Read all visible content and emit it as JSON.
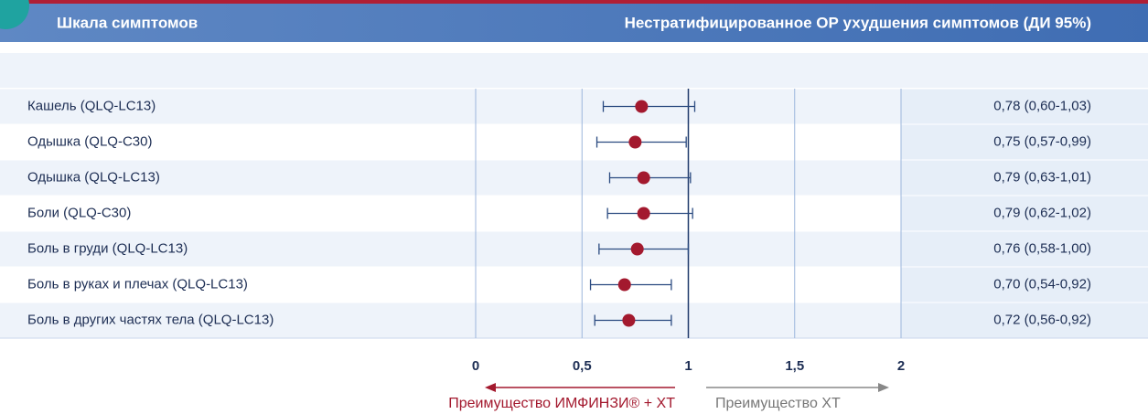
{
  "chart_data": {
    "type": "forest",
    "label_header": "Шкала симптомов",
    "title": "Нестратифицированное ОР ухудшения симптомов (ДИ 95%)",
    "categories": [
      "Кашель (QLQ-LC13)",
      "Одышка (QLQ-C30)",
      "Одышка (QLQ-LC13)",
      "Боли (QLQ-C30)",
      "Боль в груди (QLQ-LC13)",
      "Боль в руках и плечах (QLQ-LC13)",
      "Боль в других частях тела (QLQ-LC13)"
    ],
    "values": [
      0.78,
      0.75,
      0.79,
      0.79,
      0.76,
      0.7,
      0.72
    ],
    "lower": [
      0.6,
      0.57,
      0.63,
      0.62,
      0.58,
      0.54,
      0.56
    ],
    "upper": [
      1.03,
      0.99,
      1.01,
      1.02,
      1.0,
      0.92,
      0.92
    ],
    "value_labels": [
      "0,78 (0,60-1,03)",
      "0,75 (0,57-0,99)",
      "0,79 (0,63-1,01)",
      "0,79 (0,62-1,02)",
      "0,76 (0,58-1,00)",
      "0,70 (0,54-0,92)",
      "0,72 (0,56-0,92)"
    ],
    "color": "#a3192e",
    "ci_color": "#2a4a80",
    "xlim": [
      0,
      2
    ],
    "xticks": [
      0,
      {
        "value": 0.5,
        "label": "0,5"
      },
      1,
      {
        "value": 1.5,
        "label": "1,5"
      },
      2
    ],
    "reference": 1,
    "annotations": [
      "Преимущество ИМФИНЗИ® + ХТ",
      "Преимущество ХТ"
    ]
  }
}
